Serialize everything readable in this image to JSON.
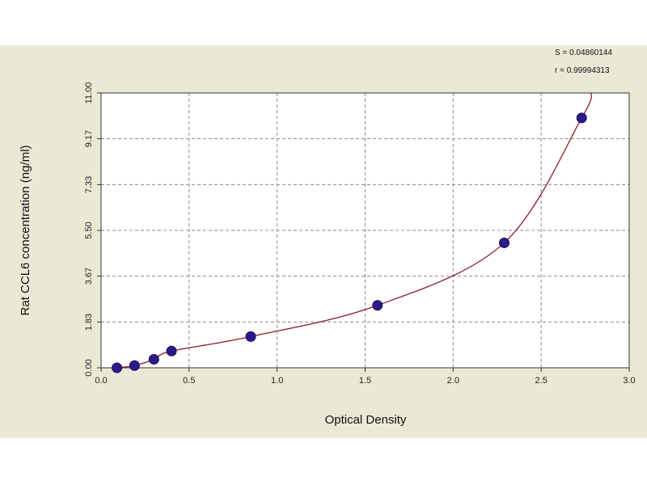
{
  "chart_data": {
    "type": "scatter",
    "title": "",
    "xlabel": "Optical Density",
    "ylabel": "Rat CCL6 concentration (ng/ml)",
    "xlim": [
      0.0,
      3.0
    ],
    "ylim": [
      0.0,
      11.0
    ],
    "x_ticks": [
      "0.0",
      "0.5",
      "1.0",
      "1.5",
      "2.0",
      "2.5",
      "3.0"
    ],
    "y_ticks": [
      "0.00",
      "1.83",
      "3.67",
      "5.50",
      "7.33",
      "9.17",
      "11.00"
    ],
    "grid": true,
    "stats": {
      "line1": "S = 0.04860144",
      "line2": "r = 0.99994313"
    },
    "series": [
      {
        "x": [
          0.09,
          0.19,
          0.3,
          0.4,
          0.85,
          1.57,
          2.29,
          2.73
        ],
        "y": [
          0.0,
          0.09,
          0.34,
          0.67,
          1.25,
          2.5,
          5.0,
          10.0
        ]
      }
    ],
    "colors": {
      "points": "#2a1a8c",
      "curve": "#8b1a2a",
      "plot_bg": "#ffffff",
      "panel_bg": "#eae9d6",
      "grid": "#8a8a8a"
    }
  }
}
